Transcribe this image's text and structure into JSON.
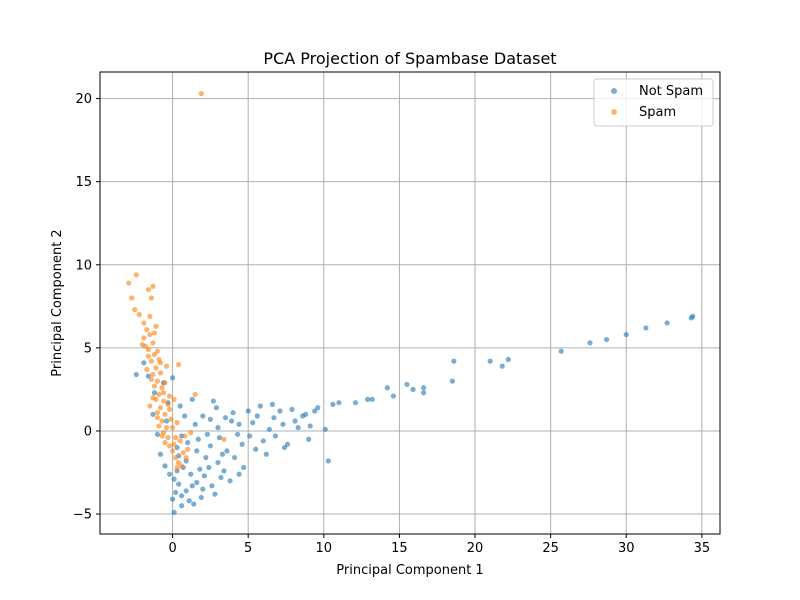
{
  "chart_data": {
    "type": "scatter",
    "title": "PCA Projection of Spambase Dataset",
    "xlabel": "Principal Component 1",
    "ylabel": "Principal Component 2",
    "xlim": [
      -4.8,
      36.2
    ],
    "ylim": [
      -6.2,
      21.6
    ],
    "xticks": [
      0,
      5,
      10,
      15,
      20,
      25,
      30,
      35
    ],
    "yticks": [
      -5,
      0,
      5,
      10,
      15,
      20
    ],
    "grid": true,
    "legend_position": "top-right",
    "series": [
      {
        "name": "Not Spam",
        "color": "#1f77b4",
        "points": [
          [
            -0.5,
            -2.1
          ],
          [
            -0.2,
            -2.6
          ],
          [
            0.1,
            -2.9
          ],
          [
            0.4,
            -3.2
          ],
          [
            0.2,
            -3.7
          ],
          [
            0.0,
            -4.1
          ],
          [
            0.1,
            -4.9
          ],
          [
            0.6,
            -4.5
          ],
          [
            1.1,
            -4.2
          ],
          [
            1.4,
            -4.4
          ],
          [
            0.9,
            -3.6
          ],
          [
            1.6,
            -3.1
          ],
          [
            2.1,
            -2.7
          ],
          [
            2.6,
            -3.3
          ],
          [
            3.4,
            -2.4
          ],
          [
            3.0,
            -1.9
          ],
          [
            2.2,
            -1.6
          ],
          [
            1.6,
            -1.2
          ],
          [
            1.0,
            -0.7
          ],
          [
            0.6,
            -0.3
          ],
          [
            0.3,
            -1.0
          ],
          [
            0.9,
            -1.8
          ],
          [
            1.8,
            -2.3
          ],
          [
            2.5,
            -0.9
          ],
          [
            3.1,
            -0.4
          ],
          [
            3.6,
            -1.2
          ],
          [
            4.1,
            -1.6
          ],
          [
            4.6,
            -0.8
          ],
          [
            5.1,
            -0.3
          ],
          [
            5.5,
            -1.1
          ],
          [
            6.0,
            -0.6
          ],
          [
            6.4,
            0.1
          ],
          [
            6.8,
            -0.3
          ],
          [
            7.3,
            0.4
          ],
          [
            7.6,
            -0.8
          ],
          [
            8.1,
            0.6
          ],
          [
            8.6,
            0.9
          ],
          [
            9.1,
            0.3
          ],
          [
            9.6,
            1.4
          ],
          [
            10.1,
            0.1
          ],
          [
            10.3,
            -1.8
          ],
          [
            10.6,
            1.6
          ],
          [
            11.0,
            1.7
          ],
          [
            12.1,
            1.7
          ],
          [
            12.9,
            1.9
          ],
          [
            13.2,
            1.9
          ],
          [
            14.2,
            2.6
          ],
          [
            14.6,
            2.1
          ],
          [
            15.5,
            2.8
          ],
          [
            15.9,
            2.5
          ],
          [
            16.6,
            2.3
          ],
          [
            16.6,
            2.6
          ],
          [
            18.5,
            3.0
          ],
          [
            18.6,
            4.2
          ],
          [
            21.0,
            4.2
          ],
          [
            21.8,
            3.9
          ],
          [
            22.2,
            4.3
          ],
          [
            25.7,
            4.8
          ],
          [
            27.6,
            5.3
          ],
          [
            28.7,
            5.5
          ],
          [
            30.0,
            5.8
          ],
          [
            31.3,
            6.2
          ],
          [
            32.7,
            6.5
          ],
          [
            34.3,
            6.8
          ],
          [
            34.4,
            6.9
          ],
          [
            1.5,
            0.4
          ],
          [
            2.0,
            0.9
          ],
          [
            2.5,
            0.7
          ],
          [
            3.0,
            0.2
          ],
          [
            3.5,
            0.8
          ],
          [
            4.0,
            1.1
          ],
          [
            4.4,
            0.4
          ],
          [
            5.0,
            1.2
          ],
          [
            5.8,
            1.5
          ],
          [
            6.6,
            1.6
          ],
          [
            7.1,
            1.2
          ],
          [
            7.9,
            1.3
          ],
          [
            8.3,
            0.2
          ],
          [
            9.0,
            -0.5
          ],
          [
            4.7,
            -2.2
          ],
          [
            3.8,
            -3.0
          ],
          [
            2.8,
            -3.8
          ],
          [
            1.9,
            -4.0
          ],
          [
            0.7,
            -2.2
          ],
          [
            1.2,
            -2.6
          ],
          [
            -0.8,
            -1.4
          ],
          [
            -1.0,
            -0.2
          ],
          [
            -1.3,
            1.0
          ],
          [
            -1.2,
            2.3
          ],
          [
            -1.6,
            3.3
          ],
          [
            -1.9,
            4.1
          ],
          [
            -2.4,
            3.4
          ],
          [
            -0.6,
            2.9
          ],
          [
            0.0,
            3.2
          ],
          [
            -0.3,
            1.7
          ],
          [
            0.5,
            1.5
          ],
          [
            1.3,
            1.9
          ],
          [
            0.8,
            0.9
          ],
          [
            -0.4,
            0.6
          ],
          [
            2.3,
            -0.2
          ],
          [
            5.3,
            0.5
          ],
          [
            6.2,
            -1.4
          ],
          [
            3.3,
            -1.4
          ],
          [
            4.3,
            -0.2
          ],
          [
            2.9,
            1.4
          ],
          [
            1.7,
            -0.5
          ],
          [
            0.4,
            -1.5
          ],
          [
            8.8,
            1.0
          ],
          [
            9.4,
            1.2
          ],
          [
            7.4,
            -1.0
          ],
          [
            6.7,
            0.8
          ],
          [
            5.6,
            0.9
          ],
          [
            3.9,
            0.6
          ],
          [
            2.7,
            1.8
          ],
          [
            2.0,
            -3.5
          ],
          [
            1.3,
            -3.3
          ],
          [
            0.6,
            -3.9
          ],
          [
            0.3,
            -2.4
          ],
          [
            2.4,
            -2.2
          ],
          [
            3.2,
            -2.8
          ],
          [
            4.4,
            -2.6
          ]
        ]
      },
      {
        "name": "Spam",
        "color": "#ff7f0e",
        "points": [
          [
            1.9,
            20.3
          ],
          [
            -2.9,
            8.9
          ],
          [
            -2.4,
            9.4
          ],
          [
            -2.7,
            8.0
          ],
          [
            -1.6,
            8.5
          ],
          [
            -1.4,
            8.0
          ],
          [
            -1.3,
            8.7
          ],
          [
            -2.5,
            7.3
          ],
          [
            -2.2,
            7.0
          ],
          [
            -1.9,
            6.5
          ],
          [
            -1.7,
            6.1
          ],
          [
            -1.5,
            5.8
          ],
          [
            -1.9,
            5.6
          ],
          [
            -1.3,
            5.3
          ],
          [
            -1.6,
            4.9
          ],
          [
            -1.2,
            4.6
          ],
          [
            -1.4,
            4.2
          ],
          [
            -0.9,
            4.3
          ],
          [
            -1.1,
            3.8
          ],
          [
            -1.3,
            3.4
          ],
          [
            -0.8,
            3.5
          ],
          [
            -1.0,
            3.0
          ],
          [
            -1.2,
            2.7
          ],
          [
            -0.7,
            2.6
          ],
          [
            -0.9,
            2.2
          ],
          [
            -1.1,
            1.9
          ],
          [
            -0.6,
            1.8
          ],
          [
            -0.8,
            1.4
          ],
          [
            -1.0,
            1.1
          ],
          [
            -0.5,
            1.0
          ],
          [
            -0.7,
            0.6
          ],
          [
            -0.9,
            0.3
          ],
          [
            -0.4,
            0.2
          ],
          [
            -0.6,
            -0.1
          ],
          [
            -0.3,
            -0.4
          ],
          [
            -0.5,
            -0.7
          ],
          [
            -0.2,
            -0.9
          ],
          [
            0.0,
            -1.2
          ],
          [
            0.2,
            -1.6
          ],
          [
            0.4,
            -1.9
          ],
          [
            0.3,
            -2.2
          ],
          [
            0.6,
            -2.1
          ],
          [
            0.4,
            4.0
          ],
          [
            0.1,
            1.9
          ],
          [
            1.5,
            2.2
          ],
          [
            0.5,
            -0.6
          ],
          [
            0.8,
            -0.3
          ],
          [
            1.2,
            -0.1
          ],
          [
            0.3,
            0.5
          ],
          [
            0.0,
            0.2
          ],
          [
            -0.2,
            1.3
          ],
          [
            -1.5,
            6.9
          ],
          [
            -1.8,
            5.1
          ],
          [
            -1.6,
            4.5
          ],
          [
            -0.4,
            3.9
          ],
          [
            -1.2,
            5.9
          ],
          [
            -1.4,
            3.1
          ],
          [
            -0.6,
            2.3
          ],
          [
            -1.0,
            4.8
          ],
          [
            -0.3,
            1.6
          ],
          [
            -0.1,
            0.7
          ],
          [
            0.2,
            -0.4
          ],
          [
            0.7,
            -1.3
          ],
          [
            -1.7,
            3.7
          ],
          [
            -2.0,
            5.2
          ],
          [
            -1.1,
            6.3
          ],
          [
            -0.8,
            4.1
          ],
          [
            -0.5,
            2.9
          ],
          [
            -0.2,
            2.1
          ],
          [
            3.4,
            -0.5
          ],
          [
            -1.3,
            2.0
          ],
          [
            -1.5,
            1.5
          ],
          [
            -1.0,
            0.8
          ],
          [
            -0.7,
            -0.3
          ],
          [
            0.1,
            -0.8
          ],
          [
            1.0,
            -1.1
          ],
          [
            0.9,
            -1.6
          ]
        ]
      }
    ]
  }
}
